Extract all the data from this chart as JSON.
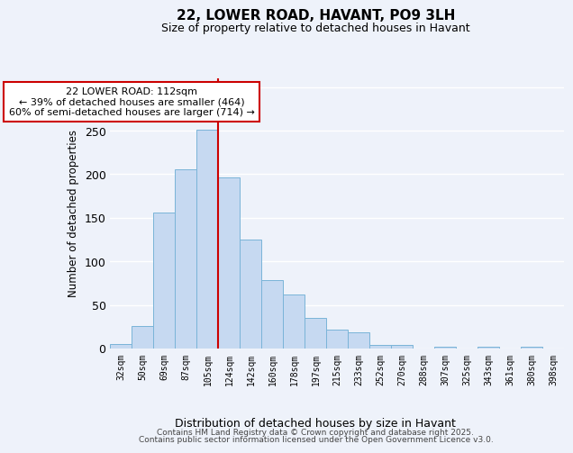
{
  "title": "22, LOWER ROAD, HAVANT, PO9 3LH",
  "subtitle": "Size of property relative to detached houses in Havant",
  "xlabel": "Distribution of detached houses by size in Havant",
  "ylabel": "Number of detached properties",
  "bar_labels": [
    "32sqm",
    "50sqm",
    "69sqm",
    "87sqm",
    "105sqm",
    "124sqm",
    "142sqm",
    "160sqm",
    "178sqm",
    "197sqm",
    "215sqm",
    "233sqm",
    "252sqm",
    "270sqm",
    "288sqm",
    "307sqm",
    "325sqm",
    "343sqm",
    "361sqm",
    "380sqm",
    "398sqm"
  ],
  "bar_values": [
    5,
    26,
    156,
    206,
    251,
    196,
    125,
    79,
    62,
    35,
    22,
    19,
    4,
    4,
    0,
    2,
    0,
    2,
    0,
    2,
    0
  ],
  "bar_color": "#c6d9f1",
  "bar_edge_color": "#7ab4d8",
  "vline_between": [
    4,
    5
  ],
  "vline_color": "#cc0000",
  "annotation_title": "22 LOWER ROAD: 112sqm",
  "annotation_line1": "← 39% of detached houses are smaller (464)",
  "annotation_line2": "60% of semi-detached houses are larger (714) →",
  "annotation_box_color": "#ffffff",
  "annotation_box_edge_color": "#cc0000",
  "ylim": [
    0,
    310
  ],
  "yticks": [
    0,
    50,
    100,
    150,
    200,
    250,
    300
  ],
  "background_color": "#eef2fa",
  "grid_color": "#ffffff",
  "footer_line1": "Contains HM Land Registry data © Crown copyright and database right 2025.",
  "footer_line2": "Contains public sector information licensed under the Open Government Licence v3.0."
}
